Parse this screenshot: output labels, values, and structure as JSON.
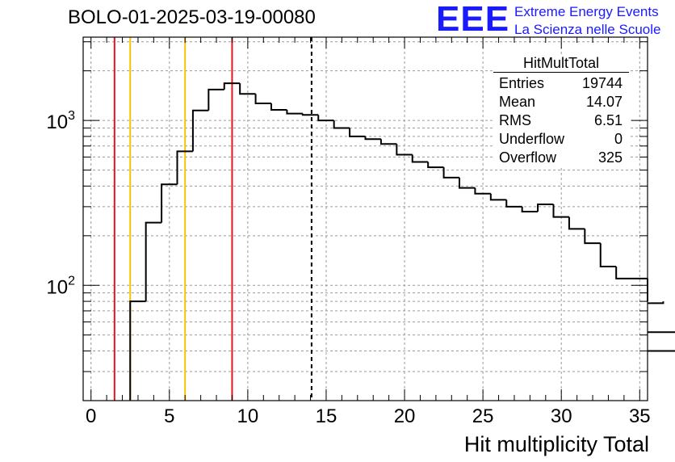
{
  "header": {
    "run_title": "BOLO-01-2025-03-19-00080",
    "logo_mark": "EEE",
    "logo_line1": "Extreme Energy Events",
    "logo_line2": "La Scienza nelle Scuole"
  },
  "stats": {
    "title": "HitMultTotal",
    "rows": [
      {
        "label": "Entries",
        "value": "19744"
      },
      {
        "label": "Mean",
        "value": "14.07"
      },
      {
        "label": "RMS",
        "value": "6.51"
      },
      {
        "label": "Underflow",
        "value": "0"
      },
      {
        "label": "Overflow",
        "value": "325"
      }
    ]
  },
  "colors": {
    "red_line": "#e8141c",
    "yellow_line": "#f5c400",
    "histogram": "#000000",
    "grid": "#9a9a9a",
    "logo": "#1a1aff"
  },
  "chart_data": {
    "type": "histogram",
    "title": "BOLO-01-2025-03-19-00080",
    "xlabel": "Hit multiplicity Total",
    "ylabel": "",
    "xlim": [
      -0.5,
      35.5
    ],
    "ylim": [
      20,
      3200
    ],
    "yscale": "log",
    "grid": true,
    "x_ticks": [
      "0",
      "5",
      "10",
      "15",
      "20",
      "25",
      "30",
      "35"
    ],
    "y_ticks": [
      {
        "value": 100,
        "label_base": "10",
        "label_exp": "2"
      },
      {
        "value": 1000,
        "label_base": "10",
        "label_exp": "3"
      }
    ],
    "bin_edges_start": 2.5,
    "bin_width": 1,
    "values": [
      80,
      240,
      410,
      650,
      1150,
      1540,
      1680,
      1450,
      1270,
      1160,
      1100,
      1080,
      1000,
      900,
      800,
      770,
      720,
      620,
      560,
      520,
      450,
      390,
      360,
      330,
      300,
      280,
      310,
      260,
      220,
      180,
      130,
      110,
      110,
      80,
      78,
      52,
      40
    ],
    "markers": [
      {
        "x": 1.5,
        "color": "red",
        "style": "solid"
      },
      {
        "x": 2.5,
        "color": "yellow",
        "style": "solid"
      },
      {
        "x": 6.0,
        "color": "yellow",
        "style": "solid"
      },
      {
        "x": 9.0,
        "color": "red",
        "style": "solid"
      },
      {
        "x": 14.07,
        "color": "black",
        "style": "dashed"
      }
    ],
    "legend_placement": "top-right"
  }
}
